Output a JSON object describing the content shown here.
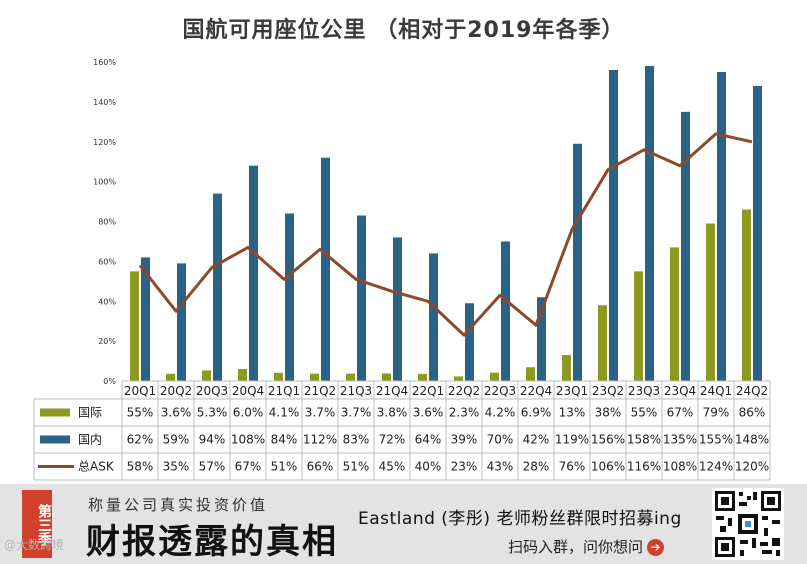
{
  "chart_data": {
    "type": "bar+line",
    "title": "国航可用座位公里 （相对于2019年各季）",
    "categories": [
      "20Q1",
      "20Q2",
      "20Q3",
      "20Q4",
      "21Q1",
      "21Q2",
      "21Q3",
      "21Q4",
      "22Q1",
      "22Q2",
      "22Q3",
      "22Q4",
      "23Q1",
      "23Q2",
      "23Q3",
      "23Q4",
      "24Q1",
      "24Q2"
    ],
    "ylim": [
      0,
      160
    ],
    "yticks": [
      0,
      20,
      40,
      60,
      80,
      100,
      120,
      140,
      160
    ],
    "ytick_labels": [
      "0%",
      "20%",
      "40%",
      "60%",
      "80%",
      "100%",
      "120%",
      "140%",
      "160%"
    ],
    "grid": false,
    "series": [
      {
        "name": "国际",
        "type": "bar",
        "color": "#8c9a1f",
        "values": [
          55,
          3.6,
          5.3,
          6.0,
          4.1,
          3.7,
          3.7,
          3.8,
          3.6,
          2.3,
          4.2,
          6.9,
          13,
          38,
          55,
          67,
          79,
          86
        ],
        "labels": [
          "55%",
          "3.6%",
          "5.3%",
          "6.0%",
          "4.1%",
          "3.7%",
          "3.7%",
          "3.8%",
          "3.6%",
          "2.3%",
          "4.2%",
          "6.9%",
          "13%",
          "38%",
          "55%",
          "67%",
          "79%",
          "86%"
        ]
      },
      {
        "name": "国内",
        "type": "bar",
        "color": "#2b6386",
        "values": [
          62,
          59,
          94,
          108,
          84,
          112,
          83,
          72,
          64,
          39,
          70,
          42,
          119,
          156,
          158,
          135,
          155,
          148
        ],
        "labels": [
          "62%",
          "59%",
          "94%",
          "108%",
          "84%",
          "112%",
          "83%",
          "72%",
          "64%",
          "39%",
          "70%",
          "42%",
          "119%",
          "156%",
          "158%",
          "135%",
          "155%",
          "148%"
        ]
      },
      {
        "name": "总ASK",
        "type": "line",
        "color": "#8c4a2a",
        "values": [
          58,
          35,
          57,
          67,
          51,
          66,
          51,
          45,
          40,
          23,
          43,
          28,
          76,
          106,
          116,
          108,
          124,
          120
        ],
        "labels": [
          "58%",
          "35%",
          "57%",
          "67%",
          "51%",
          "66%",
          "51%",
          "45%",
          "40%",
          "23%",
          "43%",
          "28%",
          "76%",
          "106%",
          "116%",
          "108%",
          "124%",
          "120%"
        ]
      }
    ]
  },
  "footer": {
    "badge": "第三季",
    "slogan": "称量公司真实投资价值",
    "headline": "财报透露的真相",
    "watermark": "@大数跨境",
    "promo": "Eastland (李彤) 老师粉丝群限时招募ing",
    "scan_text": "扫码入群，问你想问",
    "arrow_icon": "➔",
    "accent_color": "#d0402b"
  }
}
